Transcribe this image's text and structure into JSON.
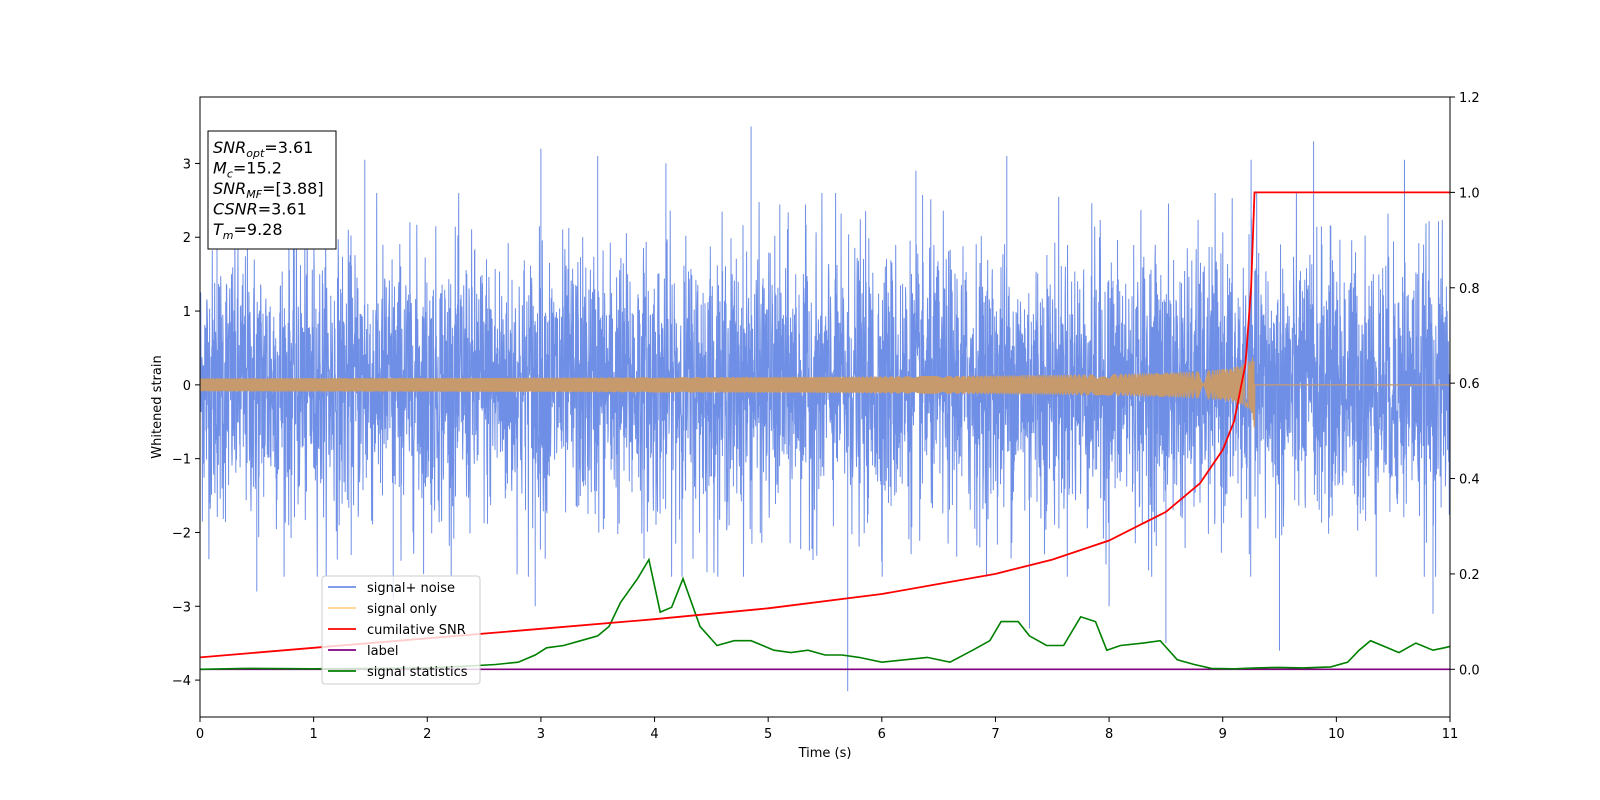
{
  "chart_data": {
    "type": "line",
    "xlabel": "Time (s)",
    "ylabel": "Whitened strain",
    "xlim": [
      0,
      11
    ],
    "ylim_left": [
      -4.5,
      3.9
    ],
    "ylim_right": [
      -0.1,
      1.2
    ],
    "x_ticks": [
      0,
      1,
      2,
      3,
      4,
      5,
      6,
      7,
      8,
      9,
      10,
      11
    ],
    "y_ticks_left": [
      -4,
      -3,
      -2,
      -1,
      0,
      1,
      2,
      3
    ],
    "y_ticks_right": [
      0.0,
      0.2,
      0.4,
      0.6,
      0.8,
      1.0,
      1.2
    ],
    "x_tick_labels": [
      "0",
      "1",
      "2",
      "3",
      "4",
      "5",
      "6",
      "7",
      "8",
      "9",
      "10",
      "11"
    ],
    "y_tick_labels_left": [
      "−4",
      "−3",
      "−2",
      "−1",
      "0",
      "1",
      "2",
      "3"
    ],
    "y_tick_labels_right": [
      "0.0",
      "0.2",
      "0.4",
      "0.6",
      "0.8",
      "1.0",
      "1.2"
    ],
    "grid": false,
    "legend_position": "lower-left",
    "colors": {
      "signal_noise": "#6f8fe6",
      "signal_only": "#c79a6e",
      "cumulative_snr": "#ff0000",
      "label": "#800080",
      "signal_statistics": "#008000"
    },
    "series": [
      {
        "name": "signal+ noise",
        "axis": "left",
        "description_values": "noisy whitened strain, roughly within -2.5 to 2.5 with spikes to ±3.5",
        "peaks": [
          {
            "x": 0.15,
            "y": 2.5
          },
          {
            "x": 0.5,
            "y": -2.8
          },
          {
            "x": 1.45,
            "y": 3.05
          },
          {
            "x": 1.7,
            "y": -2.9
          },
          {
            "x": 2.95,
            "y": -3.0
          },
          {
            "x": 3.0,
            "y": 3.2
          },
          {
            "x": 3.5,
            "y": 3.1
          },
          {
            "x": 4.1,
            "y": 3.0
          },
          {
            "x": 4.85,
            "y": 3.5
          },
          {
            "x": 5.7,
            "y": -4.15
          },
          {
            "x": 6.3,
            "y": 2.9
          },
          {
            "x": 7.1,
            "y": 3.1
          },
          {
            "x": 7.3,
            "y": -3.3
          },
          {
            "x": 8.0,
            "y": -3.0
          },
          {
            "x": 8.5,
            "y": -3.5
          },
          {
            "x": 9.25,
            "y": 3.05
          },
          {
            "x": 9.5,
            "y": -3.6
          },
          {
            "x": 9.8,
            "y": 3.3
          },
          {
            "x": 10.6,
            "y": 3.05
          },
          {
            "x": 10.85,
            "y": -3.1
          }
        ]
      },
      {
        "name": "signal only",
        "axis": "left",
        "chirp_end": 9.28,
        "max_amplitude": 0.62
      },
      {
        "name": "cumilative SNR",
        "axis": "right",
        "x": [
          0,
          1,
          2,
          3,
          4,
          5,
          6,
          7,
          7.5,
          8,
          8.5,
          8.8,
          9.0,
          9.1,
          9.2,
          9.25,
          9.28,
          9.28,
          11
        ],
        "y": [
          0.025,
          0.045,
          0.065,
          0.085,
          0.105,
          0.128,
          0.158,
          0.2,
          0.23,
          0.27,
          0.33,
          0.39,
          0.46,
          0.52,
          0.64,
          0.8,
          1.0,
          1.0,
          1.0
        ]
      },
      {
        "name": "label",
        "axis": "right",
        "x": [
          0,
          11
        ],
        "y": [
          0,
          0
        ]
      },
      {
        "name": "signal statistics",
        "axis": "right",
        "x": [
          0,
          0.4,
          1.0,
          1.5,
          2.0,
          2.3,
          2.6,
          2.8,
          2.95,
          3.05,
          3.2,
          3.35,
          3.5,
          3.6,
          3.7,
          3.85,
          3.95,
          4.05,
          4.15,
          4.25,
          4.4,
          4.55,
          4.7,
          4.85,
          5.05,
          5.2,
          5.35,
          5.5,
          5.65,
          5.8,
          6.0,
          6.2,
          6.4,
          6.6,
          6.8,
          6.95,
          7.05,
          7.2,
          7.3,
          7.45,
          7.6,
          7.75,
          7.88,
          7.98,
          8.1,
          8.3,
          8.45,
          8.6,
          8.75,
          8.9,
          9.1,
          9.3,
          9.5,
          9.7,
          9.95,
          10.1,
          10.2,
          10.3,
          10.45,
          10.55,
          10.7,
          10.85,
          10.95,
          11
        ],
        "y": [
          0.0,
          0.002,
          0.001,
          0.002,
          0.003,
          0.006,
          0.01,
          0.015,
          0.03,
          0.045,
          0.05,
          0.06,
          0.07,
          0.09,
          0.14,
          0.19,
          0.23,
          0.12,
          0.13,
          0.19,
          0.09,
          0.05,
          0.06,
          0.06,
          0.04,
          0.035,
          0.04,
          0.03,
          0.03,
          0.025,
          0.015,
          0.02,
          0.025,
          0.015,
          0.04,
          0.06,
          0.1,
          0.1,
          0.07,
          0.05,
          0.05,
          0.11,
          0.1,
          0.04,
          0.05,
          0.055,
          0.06,
          0.02,
          0.01,
          0.002,
          0.001,
          0.003,
          0.004,
          0.003,
          0.005,
          0.015,
          0.04,
          0.06,
          0.045,
          0.035,
          0.055,
          0.04,
          0.045,
          0.048
        ]
      }
    ],
    "legend": [
      "signal+ noise",
      "signal only",
      "cumilative SNR",
      "label",
      "signal statistics"
    ],
    "annotation_box": [
      {
        "main": "SNR",
        "sub": "opt",
        "rest": "=3.61"
      },
      {
        "main": "M",
        "sub": "c",
        "rest": "=15.2"
      },
      {
        "main": "SNR",
        "sub": "MF",
        "rest": "=[3.88]"
      },
      {
        "main": "CSNR",
        "sub": "",
        "rest": "=3.61"
      },
      {
        "main": "T",
        "sub": "m",
        "rest": "=9.28"
      }
    ]
  }
}
